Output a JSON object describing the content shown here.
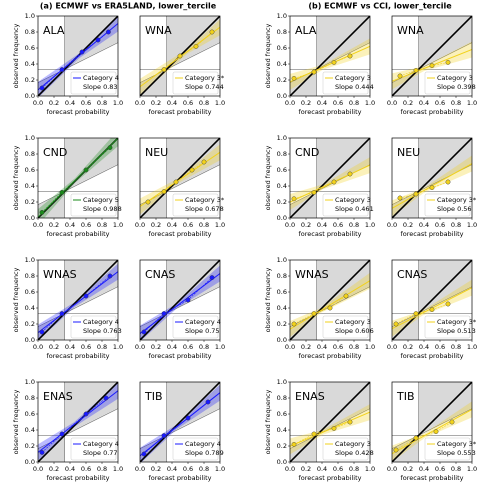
{
  "titles": [
    "(a) ECMWF vs ERA5LAND, lower_tercile",
    "(b) ECMWF vs CCI, lower_tercile"
  ],
  "chart_data": [
    {
      "type": "scatter",
      "region": "ALA",
      "color": "#1a1aff",
      "x": [
        0.05,
        0.3,
        0.55,
        0.75,
        0.88
      ],
      "y": [
        0.1,
        0.33,
        0.55,
        0.7,
        0.8
      ],
      "slope": 0.83,
      "legend_category": "Category 4",
      "legend_slope": "Slope 0.83",
      "xlim": [
        0,
        1
      ],
      "ylim": [
        0,
        1
      ],
      "xticks": [
        {
          "value": 0,
          "label": "0.0"
        },
        0.2,
        0.4,
        0.6,
        0.8,
        {
          "value": 1,
          "label": "1.0"
        }
      ],
      "yticks": [
        {
          "value": 0,
          "label": "0.0"
        },
        0.2,
        0.4,
        0.6,
        0.8,
        {
          "value": 1,
          "label": "1.0"
        }
      ],
      "xlabel": "forecast probability",
      "ylabel": "observed frequency"
    },
    {
      "type": "scatter",
      "region": "WNA",
      "color": "#f2d21b",
      "x": [
        0.3,
        0.5,
        0.7,
        0.9
      ],
      "y": [
        0.33,
        0.5,
        0.62,
        0.8
      ],
      "slope": 0.744,
      "legend_category": "Category 3*",
      "legend_slope": "Slope 0.744",
      "xlim": [
        0,
        1
      ],
      "ylim": [
        0,
        1
      ],
      "xticks": [
        {
          "value": 0,
          "label": "0.0"
        },
        0.2,
        0.4,
        0.6,
        0.8,
        {
          "value": 1,
          "label": "1.0"
        }
      ],
      "xlabel": "forecast probability"
    },
    {
      "type": "scatter",
      "region": "ALA",
      "color": "#f2d21b",
      "x": [
        0.05,
        0.3,
        0.55,
        0.75
      ],
      "y": [
        0.22,
        0.3,
        0.42,
        0.5
      ],
      "slope": 0.444,
      "legend_category": "Category 3",
      "legend_slope": "Slope 0.444",
      "xlim": [
        0,
        1
      ],
      "ylim": [
        0,
        1
      ],
      "xticks": [
        {
          "value": 0,
          "label": "0.0"
        },
        0.2,
        0.4,
        0.6,
        0.8,
        {
          "value": 1,
          "label": "1.0"
        }
      ],
      "yticks": [
        {
          "value": 0,
          "label": "0.0"
        },
        0.2,
        0.4,
        0.6,
        0.8,
        {
          "value": 1,
          "label": "1.0"
        }
      ],
      "xlabel": "forecast probability",
      "ylabel": "observed frequency"
    },
    {
      "type": "scatter",
      "region": "WNA",
      "color": "#f2d21b",
      "x": [
        0.1,
        0.3,
        0.5,
        0.7
      ],
      "y": [
        0.25,
        0.32,
        0.38,
        0.42
      ],
      "slope": 0.398,
      "legend_category": "Category 3",
      "legend_slope": "Slope 0.398",
      "xlim": [
        0,
        1
      ],
      "ylim": [
        0,
        1
      ],
      "xticks": [
        {
          "value": 0,
          "label": "0.0"
        },
        0.2,
        0.4,
        0.6,
        0.8,
        {
          "value": 1,
          "label": "1.0"
        }
      ],
      "xlabel": "forecast probability"
    },
    {
      "type": "scatter",
      "region": "CND",
      "color": "#1a8a1a",
      "x": [
        0.05,
        0.3,
        0.6,
        0.9
      ],
      "y": [
        0.07,
        0.32,
        0.6,
        0.88
      ],
      "slope": 0.988,
      "legend_category": "Category 5",
      "legend_slope": "Slope 0.988",
      "xlim": [
        0,
        1
      ],
      "ylim": [
        0,
        1
      ],
      "xticks": [
        {
          "value": 0,
          "label": "0.0"
        },
        0.2,
        0.4,
        0.6,
        0.8,
        {
          "value": 1,
          "label": "1.0"
        }
      ],
      "yticks": [
        {
          "value": 0,
          "label": "0.0"
        },
        0.2,
        0.4,
        0.6,
        0.8,
        {
          "value": 1,
          "label": "1.0"
        }
      ],
      "xlabel": "forecast probability",
      "ylabel": "observed frequency"
    },
    {
      "type": "scatter",
      "region": "NEU",
      "color": "#f2d21b",
      "x": [
        0.1,
        0.3,
        0.45,
        0.65,
        0.8
      ],
      "y": [
        0.2,
        0.33,
        0.45,
        0.6,
        0.7
      ],
      "slope": 0.678,
      "legend_category": "Category 3*",
      "legend_slope": "Slope 0.678",
      "xlim": [
        0,
        1
      ],
      "ylim": [
        0,
        1
      ],
      "xticks": [
        {
          "value": 0,
          "label": "0.0"
        },
        0.2,
        0.4,
        0.6,
        0.8,
        {
          "value": 1,
          "label": "1.0"
        }
      ],
      "xlabel": "forecast probability"
    },
    {
      "type": "scatter",
      "region": "CND",
      "color": "#f2d21b",
      "x": [
        0.05,
        0.3,
        0.55,
        0.75
      ],
      "y": [
        0.24,
        0.32,
        0.45,
        0.55
      ],
      "slope": 0.461,
      "legend_category": "Category 3",
      "legend_slope": "Slope 0.461",
      "xlim": [
        0,
        1
      ],
      "ylim": [
        0,
        1
      ],
      "xticks": [
        {
          "value": 0,
          "label": "0.0"
        },
        0.2,
        0.4,
        0.6,
        0.8,
        {
          "value": 1,
          "label": "1.0"
        }
      ],
      "yticks": [
        {
          "value": 0,
          "label": "0.0"
        },
        0.2,
        0.4,
        0.6,
        0.8,
        {
          "value": 1,
          "label": "1.0"
        }
      ],
      "xlabel": "forecast probability",
      "ylabel": "observed frequency"
    },
    {
      "type": "scatter",
      "region": "NEU",
      "color": "#f2d21b",
      "x": [
        0.1,
        0.3,
        0.5,
        0.7
      ],
      "y": [
        0.25,
        0.3,
        0.38,
        0.45
      ],
      "slope": 0.56,
      "legend_category": "Category 3*",
      "legend_slope": "Slope 0.56",
      "xlim": [
        0,
        1
      ],
      "ylim": [
        0,
        1
      ],
      "xticks": [
        {
          "value": 0,
          "label": "0.0"
        },
        0.2,
        0.4,
        0.6,
        0.8,
        {
          "value": 1,
          "label": "1.0"
        }
      ],
      "xlabel": "forecast probability"
    },
    {
      "type": "scatter",
      "region": "WNAS",
      "color": "#1a1aff",
      "x": [
        0.05,
        0.3,
        0.6,
        0.9
      ],
      "y": [
        0.1,
        0.33,
        0.55,
        0.8
      ],
      "slope": 0.763,
      "legend_category": "Category 4",
      "legend_slope": "Slope 0.763",
      "xlim": [
        0,
        1
      ],
      "ylim": [
        0,
        1
      ],
      "xticks": [
        {
          "value": 0,
          "label": "0.0"
        },
        0.2,
        0.4,
        0.6,
        0.8,
        {
          "value": 1,
          "label": "1.0"
        }
      ],
      "yticks": [
        {
          "value": 0,
          "label": "0.0"
        },
        0.2,
        0.4,
        0.6,
        0.8,
        {
          "value": 1,
          "label": "1.0"
        }
      ],
      "xlabel": "forecast probability",
      "ylabel": "observed frequency"
    },
    {
      "type": "scatter",
      "region": "CNAS",
      "color": "#1a1aff",
      "x": [
        0.05,
        0.3,
        0.6,
        0.9
      ],
      "y": [
        0.1,
        0.33,
        0.5,
        0.78
      ],
      "slope": 0.75,
      "legend_category": "Category 4",
      "legend_slope": "Slope 0.75",
      "xlim": [
        0,
        1
      ],
      "ylim": [
        0,
        1
      ],
      "xticks": [
        {
          "value": 0,
          "label": "0.0"
        },
        0.2,
        0.4,
        0.6,
        0.8,
        {
          "value": 1,
          "label": "1.0"
        }
      ],
      "xlabel": "forecast probability"
    },
    {
      "type": "scatter",
      "region": "WNAS",
      "color": "#f2d21b",
      "x": [
        0.05,
        0.3,
        0.5,
        0.7
      ],
      "y": [
        0.2,
        0.33,
        0.4,
        0.55
      ],
      "slope": 0.606,
      "legend_category": "Category 3",
      "legend_slope": "Slope 0.606",
      "xlim": [
        0,
        1
      ],
      "ylim": [
        0,
        1
      ],
      "xticks": [
        {
          "value": 0,
          "label": "0.0"
        },
        0.2,
        0.4,
        0.6,
        0.8,
        {
          "value": 1,
          "label": "1.0"
        }
      ],
      "yticks": [
        {
          "value": 0,
          "label": "0.0"
        },
        0.2,
        0.4,
        0.6,
        0.8,
        {
          "value": 1,
          "label": "1.0"
        }
      ],
      "xlabel": "forecast probability",
      "ylabel": "observed frequency"
    },
    {
      "type": "scatter",
      "region": "CNAS",
      "color": "#f2d21b",
      "x": [
        0.05,
        0.3,
        0.5,
        0.7
      ],
      "y": [
        0.2,
        0.33,
        0.38,
        0.45
      ],
      "slope": 0.513,
      "legend_category": "Category 3*",
      "legend_slope": "Slope 0.513",
      "xlim": [
        0,
        1
      ],
      "ylim": [
        0,
        1
      ],
      "xticks": [
        {
          "value": 0,
          "label": "0.0"
        },
        0.2,
        0.4,
        0.6,
        0.8,
        {
          "value": 1,
          "label": "1.0"
        }
      ],
      "xlabel": "forecast probability"
    },
    {
      "type": "scatter",
      "region": "ENAS",
      "color": "#1a1aff",
      "x": [
        0.05,
        0.3,
        0.6,
        0.85
      ],
      "y": [
        0.12,
        0.35,
        0.6,
        0.8
      ],
      "slope": 0.77,
      "legend_category": "Category 4",
      "legend_slope": "Slope 0.77",
      "xlim": [
        0,
        1
      ],
      "ylim": [
        0,
        1
      ],
      "xticks": [
        {
          "value": 0,
          "label": "0.0"
        },
        0.2,
        0.4,
        0.6,
        0.8,
        {
          "value": 1,
          "label": "1.0"
        }
      ],
      "yticks": [
        {
          "value": 0,
          "label": "0.0"
        },
        0.2,
        0.4,
        0.6,
        0.8,
        {
          "value": 1,
          "label": "1.0"
        }
      ],
      "xlabel": "forecast probability",
      "ylabel": "observed frequency"
    },
    {
      "type": "scatter",
      "region": "TIB",
      "color": "#1a1aff",
      "x": [
        0.05,
        0.3,
        0.6,
        0.85
      ],
      "y": [
        0.1,
        0.33,
        0.55,
        0.75
      ],
      "slope": 0.789,
      "legend_category": "Category 4",
      "legend_slope": "Slope 0.789",
      "xlim": [
        0,
        1
      ],
      "ylim": [
        0,
        1
      ],
      "xticks": [
        {
          "value": 0,
          "label": "0.0"
        },
        0.2,
        0.4,
        0.6,
        0.8,
        {
          "value": 1,
          "label": "1.0"
        }
      ],
      "xlabel": "forecast probability"
    },
    {
      "type": "scatter",
      "region": "ENAS",
      "color": "#f2d21b",
      "x": [
        0.05,
        0.3,
        0.55,
        0.75
      ],
      "y": [
        0.22,
        0.35,
        0.42,
        0.5
      ],
      "slope": 0.428,
      "legend_category": "Category 3",
      "legend_slope": "Slope 0.428",
      "xlim": [
        0,
        1
      ],
      "ylim": [
        0,
        1
      ],
      "xticks": [
        {
          "value": 0,
          "label": "0.0"
        },
        0.2,
        0.4,
        0.6,
        0.8,
        {
          "value": 1,
          "label": "1.0"
        }
      ],
      "yticks": [
        {
          "value": 0,
          "label": "0.0"
        },
        0.2,
        0.4,
        0.6,
        0.8,
        {
          "value": 1,
          "label": "1.0"
        }
      ],
      "xlabel": "forecast probability",
      "ylabel": "observed frequency"
    },
    {
      "type": "scatter",
      "region": "TIB",
      "color": "#f2d21b",
      "x": [
        0.05,
        0.3,
        0.55,
        0.75
      ],
      "y": [
        0.15,
        0.3,
        0.38,
        0.5
      ],
      "slope": 0.553,
      "legend_category": "Category 3*",
      "legend_slope": "Slope 0.553",
      "xlim": [
        0,
        1
      ],
      "ylim": [
        0,
        1
      ],
      "xticks": [
        {
          "value": 0,
          "label": "0.0"
        },
        0.2,
        0.4,
        0.6,
        0.8,
        {
          "value": 1,
          "label": "1.0"
        }
      ],
      "xlabel": "forecast probability"
    }
  ]
}
